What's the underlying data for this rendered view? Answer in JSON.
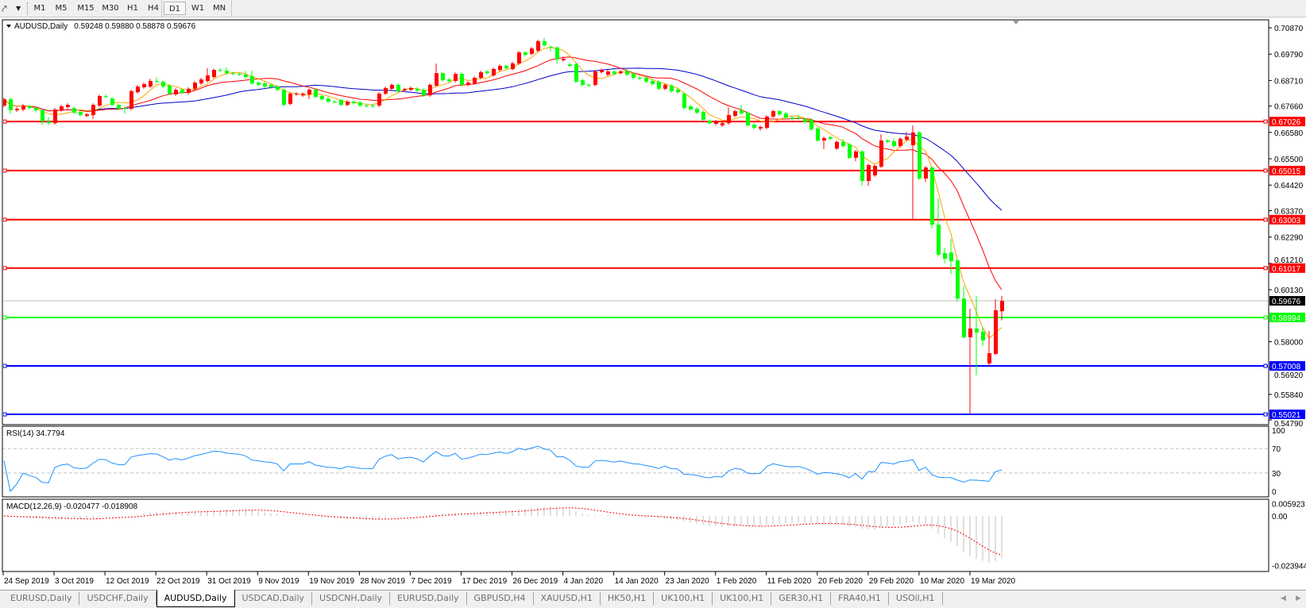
{
  "toolbar": {
    "timeframes": [
      "M1",
      "M5",
      "M15",
      "M30",
      "H1",
      "H4",
      "D1",
      "W1",
      "MN"
    ],
    "active": "D1"
  },
  "chart": {
    "symbol_title": "AUDUSD,Daily",
    "ohlc_text": "0.59248 0.59880 0.58878 0.59676",
    "rsi_header": "RSI(14) 34.7794",
    "macd_header": "MACD(12,26,9) -0.020477 -0.018908"
  },
  "colors": {
    "bull_candle": "#ff0000",
    "bear_candle": "#00ff00",
    "ma_fast": "#ffa500",
    "ma_mid": "#ff0000",
    "ma_slow": "#0000cd",
    "rsi_line": "#1e90ff",
    "macd_hist": "#c0c0c0",
    "macd_signal": "#ff0000",
    "current_price": "#000000"
  },
  "chart_data": {
    "type": "candlestick",
    "symbol": "AUDUSD",
    "timeframe": "Daily",
    "price_axis_ticks": [
      "0.70870",
      "0.69790",
      "0.68710",
      "0.67660",
      "0.66580",
      "0.65500",
      "0.64420",
      "0.63370",
      "0.62290",
      "0.61210",
      "0.60130",
      "0.58000",
      "0.56920",
      "0.55840",
      "0.54790"
    ],
    "date_labels": [
      "24 Sep 2019",
      "3 Oct 2019",
      "12 Oct 2019",
      "22 Oct 2019",
      "31 Oct 2019",
      "9 Nov 2019",
      "19 Nov 2019",
      "28 Nov 2019",
      "7 Dec 2019",
      "17 Dec 2019",
      "26 Dec 2019",
      "4 Jan 2020",
      "14 Jan 2020",
      "23 Jan 2020",
      "1 Feb 2020",
      "11 Feb 2020",
      "20 Feb 2020",
      "29 Feb 2020",
      "10 Mar 2020",
      "19 Mar 2020"
    ],
    "current_price": {
      "value": 0.59676,
      "label": "0.59676"
    },
    "levels": [
      {
        "value": 0.67026,
        "label": "0.67026",
        "color": "#ff0000"
      },
      {
        "value": 0.65015,
        "label": "0.65015",
        "color": "#ff0000"
      },
      {
        "value": 0.63003,
        "label": "0.63003",
        "color": "#ff0000"
      },
      {
        "value": 0.61017,
        "label": "0.61017",
        "color": "#ff0000"
      },
      {
        "value": 0.58994,
        "label": "0.58994",
        "color": "#00ff00"
      },
      {
        "value": 0.57008,
        "label": "0.57008",
        "color": "#0000ff"
      },
      {
        "value": 0.55021,
        "label": "0.55021",
        "color": "#0000ff"
      }
    ],
    "ohlc": [
      [
        0.6768,
        0.68,
        0.6762,
        0.6794
      ],
      [
        0.6794,
        0.6801,
        0.6735,
        0.6749
      ],
      [
        0.6749,
        0.6762,
        0.6742,
        0.6755
      ],
      [
        0.6752,
        0.6775,
        0.6745,
        0.6768
      ],
      [
        0.6765,
        0.6771,
        0.6752,
        0.6758
      ],
      [
        0.6758,
        0.6764,
        0.674,
        0.6749
      ],
      [
        0.6749,
        0.6755,
        0.6688,
        0.6703
      ],
      [
        0.6703,
        0.672,
        0.6688,
        0.6696
      ],
      [
        0.6696,
        0.6758,
        0.669,
        0.6752
      ],
      [
        0.6749,
        0.6771,
        0.6743,
        0.6765
      ],
      [
        0.6762,
        0.6778,
        0.6756,
        0.6771
      ],
      [
        0.6758,
        0.6764,
        0.6733,
        0.6739
      ],
      [
        0.6742,
        0.6748,
        0.6723,
        0.6729
      ],
      [
        0.6726,
        0.6738,
        0.672,
        0.6732
      ],
      [
        0.6729,
        0.6777,
        0.6713,
        0.6771
      ],
      [
        0.6768,
        0.6813,
        0.6762,
        0.6807
      ],
      [
        0.6807,
        0.6813,
        0.6798,
        0.6804
      ],
      [
        0.6797,
        0.6803,
        0.6765,
        0.6771
      ],
      [
        0.6771,
        0.6777,
        0.6749,
        0.6755
      ],
      [
        0.6758,
        0.6764,
        0.6735,
        0.6755
      ],
      [
        0.6755,
        0.6833,
        0.6749,
        0.6827
      ],
      [
        0.6823,
        0.6852,
        0.6817,
        0.6846
      ],
      [
        0.6843,
        0.6862,
        0.6837,
        0.6856
      ],
      [
        0.6846,
        0.6878,
        0.684,
        0.6869
      ],
      [
        0.6869,
        0.6882,
        0.686,
        0.6866
      ],
      [
        0.6866,
        0.6872,
        0.684,
        0.6846
      ],
      [
        0.685,
        0.6856,
        0.6811,
        0.6817
      ],
      [
        0.6814,
        0.6839,
        0.6808,
        0.6833
      ],
      [
        0.6833,
        0.6839,
        0.6814,
        0.682
      ],
      [
        0.682,
        0.6843,
        0.6814,
        0.6837
      ],
      [
        0.6837,
        0.6868,
        0.6831,
        0.6862
      ],
      [
        0.6859,
        0.6881,
        0.6853,
        0.6875
      ],
      [
        0.6869,
        0.6921,
        0.6863,
        0.6892
      ],
      [
        0.6885,
        0.692,
        0.6879,
        0.6914
      ],
      [
        0.6914,
        0.6922,
        0.6905,
        0.6911
      ],
      [
        0.6911,
        0.6925,
        0.6895,
        0.6901
      ],
      [
        0.6901,
        0.6907,
        0.6892,
        0.6898
      ],
      [
        0.6898,
        0.6904,
        0.6889,
        0.6895
      ],
      [
        0.6895,
        0.691,
        0.6879,
        0.6885
      ],
      [
        0.6889,
        0.6911,
        0.6853,
        0.6859
      ],
      [
        0.6862,
        0.6868,
        0.6847,
        0.6853
      ],
      [
        0.6859,
        0.6865,
        0.684,
        0.6846
      ],
      [
        0.6853,
        0.6859,
        0.6837,
        0.6843
      ],
      [
        0.6846,
        0.6852,
        0.6827,
        0.6833
      ],
      [
        0.6833,
        0.6839,
        0.6765,
        0.6771
      ],
      [
        0.6775,
        0.6823,
        0.6769,
        0.6817
      ],
      [
        0.6814,
        0.6823,
        0.6808,
        0.6817
      ],
      [
        0.681,
        0.6823,
        0.6804,
        0.6817
      ],
      [
        0.6814,
        0.6839,
        0.6795,
        0.6833
      ],
      [
        0.6833,
        0.6839,
        0.6798,
        0.6804
      ],
      [
        0.6807,
        0.6813,
        0.6788,
        0.6794
      ],
      [
        0.6797,
        0.6803,
        0.6778,
        0.6784
      ],
      [
        0.6784,
        0.679,
        0.6777,
        0.6783
      ],
      [
        0.6791,
        0.6797,
        0.6765,
        0.6771
      ],
      [
        0.6771,
        0.679,
        0.6765,
        0.6784
      ],
      [
        0.6784,
        0.679,
        0.6772,
        0.6778
      ],
      [
        0.6781,
        0.6787,
        0.6762,
        0.6768
      ],
      [
        0.6768,
        0.6774,
        0.6761,
        0.6767
      ],
      [
        0.6768,
        0.6774,
        0.6759,
        0.6765
      ],
      [
        0.6768,
        0.6823,
        0.6762,
        0.6817
      ],
      [
        0.6817,
        0.6846,
        0.6811,
        0.684
      ],
      [
        0.6837,
        0.6859,
        0.6831,
        0.6853
      ],
      [
        0.6853,
        0.6859,
        0.6821,
        0.6827
      ],
      [
        0.683,
        0.6841,
        0.6824,
        0.6835
      ],
      [
        0.6833,
        0.6846,
        0.6827,
        0.684
      ],
      [
        0.6837,
        0.6843,
        0.6824,
        0.683
      ],
      [
        0.6833,
        0.6839,
        0.6804,
        0.681
      ],
      [
        0.681,
        0.6859,
        0.6804,
        0.6853
      ],
      [
        0.685,
        0.694,
        0.6844,
        0.6901
      ],
      [
        0.6901,
        0.6907,
        0.6866,
        0.6872
      ],
      [
        0.6875,
        0.6881,
        0.6863,
        0.6869
      ],
      [
        0.6869,
        0.6904,
        0.6863,
        0.6898
      ],
      [
        0.6898,
        0.6904,
        0.6847,
        0.6853
      ],
      [
        0.6853,
        0.6868,
        0.6847,
        0.6862
      ],
      [
        0.6859,
        0.6888,
        0.6853,
        0.6882
      ],
      [
        0.6882,
        0.6911,
        0.6876,
        0.6905
      ],
      [
        0.6908,
        0.6914,
        0.6895,
        0.6901
      ],
      [
        0.6892,
        0.6924,
        0.6886,
        0.6918
      ],
      [
        0.6914,
        0.6937,
        0.6908,
        0.6931
      ],
      [
        0.6931,
        0.6937,
        0.6915,
        0.6921
      ],
      [
        0.6918,
        0.6947,
        0.6912,
        0.6941
      ],
      [
        0.6941,
        0.6992,
        0.6935,
        0.6986
      ],
      [
        0.6986,
        0.6992,
        0.697,
        0.6976
      ],
      [
        0.698,
        0.7008,
        0.6974,
        0.7002
      ],
      [
        0.6993,
        0.7038,
        0.6987,
        0.7032
      ],
      [
        0.7032,
        0.7045,
        0.7009,
        0.7015
      ],
      [
        0.7009,
        0.7015,
        0.699,
        0.7006
      ],
      [
        0.7006,
        0.7012,
        0.694,
        0.6957
      ],
      [
        0.6954,
        0.697,
        0.6948,
        0.696
      ],
      [
        0.6937,
        0.6943,
        0.6925,
        0.6931
      ],
      [
        0.6937,
        0.6943,
        0.686,
        0.6866
      ],
      [
        0.6872,
        0.6878,
        0.6847,
        0.6853
      ],
      [
        0.6853,
        0.6859,
        0.6845,
        0.6851
      ],
      [
        0.6853,
        0.6914,
        0.6847,
        0.6908
      ],
      [
        0.6905,
        0.692,
        0.6899,
        0.6914
      ],
      [
        0.6895,
        0.6914,
        0.6889,
        0.6908
      ],
      [
        0.6908,
        0.6914,
        0.6892,
        0.6898
      ],
      [
        0.6901,
        0.6914,
        0.6895,
        0.6908
      ],
      [
        0.6911,
        0.6917,
        0.6889,
        0.6895
      ],
      [
        0.6898,
        0.6904,
        0.6876,
        0.6882
      ],
      [
        0.6882,
        0.6888,
        0.6873,
        0.6879
      ],
      [
        0.6882,
        0.6888,
        0.686,
        0.6866
      ],
      [
        0.6869,
        0.6875,
        0.685,
        0.6856
      ],
      [
        0.6866,
        0.6872,
        0.6831,
        0.6837
      ],
      [
        0.6837,
        0.6859,
        0.6831,
        0.6853
      ],
      [
        0.685,
        0.6856,
        0.6821,
        0.6827
      ],
      [
        0.6833,
        0.6839,
        0.6817,
        0.6823
      ],
      [
        0.6817,
        0.6823,
        0.6752,
        0.6758
      ],
      [
        0.6765,
        0.6771,
        0.6746,
        0.6752
      ],
      [
        0.6755,
        0.6761,
        0.6733,
        0.6739
      ],
      [
        0.6742,
        0.6748,
        0.6704,
        0.671
      ],
      [
        0.6706,
        0.6712,
        0.669,
        0.6696
      ],
      [
        0.6693,
        0.6709,
        0.6687,
        0.6703
      ],
      [
        0.6687,
        0.6702,
        0.6681,
        0.6696
      ],
      [
        0.6696,
        0.676,
        0.669,
        0.6729
      ],
      [
        0.6726,
        0.6751,
        0.672,
        0.6745
      ],
      [
        0.6749,
        0.677,
        0.673,
        0.6736
      ],
      [
        0.6739,
        0.6745,
        0.6681,
        0.6687
      ],
      [
        0.669,
        0.6696,
        0.6671,
        0.6677
      ],
      [
        0.6674,
        0.6686,
        0.6665,
        0.668
      ],
      [
        0.6677,
        0.6729,
        0.6671,
        0.6723
      ],
      [
        0.6723,
        0.6751,
        0.6717,
        0.6745
      ],
      [
        0.6745,
        0.6751,
        0.6726,
        0.6732
      ],
      [
        0.6736,
        0.6742,
        0.6713,
        0.6719
      ],
      [
        0.6719,
        0.6725,
        0.6707,
        0.6713
      ],
      [
        0.6719,
        0.673,
        0.671,
        0.6716
      ],
      [
        0.6713,
        0.6719,
        0.6694,
        0.67
      ],
      [
        0.671,
        0.6716,
        0.6665,
        0.6671
      ],
      [
        0.6674,
        0.668,
        0.6619,
        0.6625
      ],
      [
        0.6625,
        0.6641,
        0.659,
        0.6635
      ],
      [
        0.6638,
        0.6644,
        0.6626,
        0.6632
      ],
      [
        0.6592,
        0.6625,
        0.6586,
        0.6619
      ],
      [
        0.6619,
        0.663,
        0.6596,
        0.6602
      ],
      [
        0.6609,
        0.6615,
        0.6548,
        0.6554
      ],
      [
        0.6554,
        0.6586,
        0.654,
        0.658
      ],
      [
        0.658,
        0.6586,
        0.644,
        0.6459
      ],
      [
        0.6459,
        0.653,
        0.644,
        0.6524
      ],
      [
        0.6482,
        0.6527,
        0.6476,
        0.6521
      ],
      [
        0.6518,
        0.665,
        0.6512,
        0.6625
      ],
      [
        0.6625,
        0.6631,
        0.6613,
        0.6619
      ],
      [
        0.6622,
        0.6635,
        0.6596,
        0.6602
      ],
      [
        0.6602,
        0.6638,
        0.6596,
        0.6632
      ],
      [
        0.6628,
        0.666,
        0.6622,
        0.6641
      ],
      [
        0.6605,
        0.6687,
        0.63,
        0.6658
      ],
      [
        0.6658,
        0.6664,
        0.6463,
        0.6469
      ],
      [
        0.6469,
        0.652,
        0.6455,
        0.6514
      ],
      [
        0.6514,
        0.652,
        0.6265,
        0.628
      ],
      [
        0.628,
        0.6387,
        0.615,
        0.6156
      ],
      [
        0.6163,
        0.6186,
        0.6121,
        0.614
      ],
      [
        0.6166,
        0.6221,
        0.6078,
        0.613
      ],
      [
        0.6134,
        0.614,
        0.5965,
        0.5977
      ],
      [
        0.5977,
        0.6029,
        0.5812,
        0.5818
      ],
      [
        0.5818,
        0.5935,
        0.5506,
        0.5854
      ],
      [
        0.5854,
        0.5987,
        0.5662,
        0.5838
      ],
      [
        0.5841,
        0.586,
        0.5782,
        0.5805
      ],
      [
        0.5711,
        0.5844,
        0.5701,
        0.5753
      ],
      [
        0.575,
        0.5974,
        0.5745,
        0.5929
      ],
      [
        0.59248,
        0.5988,
        0.58878,
        0.59676
      ]
    ],
    "rsi": {
      "period": 14,
      "value": 34.7794,
      "levels": [
        70,
        30
      ],
      "scale_labels": [
        "100",
        "70",
        "30",
        "0"
      ]
    },
    "macd": {
      "fast": 12,
      "slow": 26,
      "signal": 9,
      "main": -0.020477,
      "signal_value": -0.018908,
      "scale_labels": [
        "0.005923",
        "0.00",
        "-0.023944"
      ]
    }
  },
  "tabs": [
    {
      "label": "EURUSD,Daily",
      "active": false
    },
    {
      "label": "USDCHF,Daily",
      "active": false
    },
    {
      "label": "AUDUSD,Daily",
      "active": true
    },
    {
      "label": "USDCAD,Daily",
      "active": false
    },
    {
      "label": "USDCNH,Daily",
      "active": false
    },
    {
      "label": "EURUSD,Daily",
      "active": false
    },
    {
      "label": "GBPUSD,H4",
      "active": false
    },
    {
      "label": "XAUUSD,H1",
      "active": false
    },
    {
      "label": "HK50,H1",
      "active": false
    },
    {
      "label": "UK100,H1",
      "active": false
    },
    {
      "label": "UK100,H1",
      "active": false
    },
    {
      "label": "GER30,H1",
      "active": false
    },
    {
      "label": "FRA40,H1",
      "active": false
    },
    {
      "label": "USOil,H1",
      "active": false
    }
  ]
}
